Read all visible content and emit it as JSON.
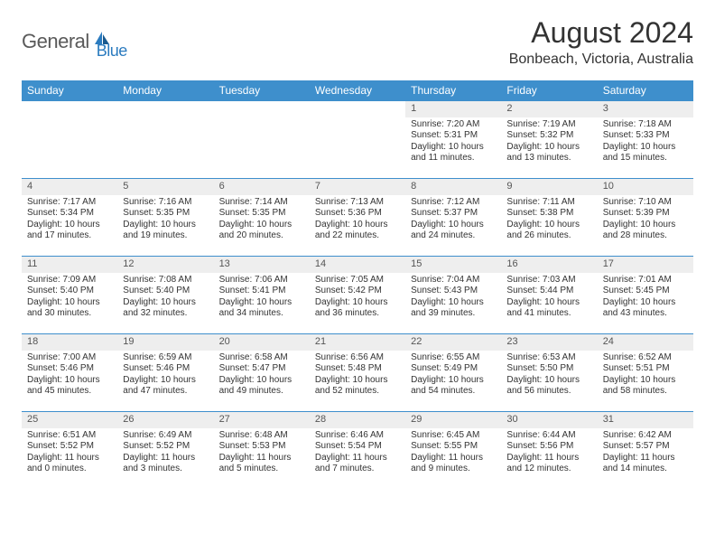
{
  "logo": {
    "text1": "General",
    "text2": "Blue"
  },
  "header": {
    "title": "August 2024",
    "location": "Bonbeach, Victoria, Australia"
  },
  "colors": {
    "header_bg": "#3e8fcc",
    "header_text": "#ffffff",
    "daynum_bg": "#eeeeee",
    "border": "#3e8fcc",
    "text": "#333333",
    "logo_gray": "#5a5a5a",
    "logo_blue": "#2b7bbf"
  },
  "weekdays": [
    "Sunday",
    "Monday",
    "Tuesday",
    "Wednesday",
    "Thursday",
    "Friday",
    "Saturday"
  ],
  "weeks": [
    [
      {
        "n": "",
        "sr": "",
        "ss": "",
        "dl": ""
      },
      {
        "n": "",
        "sr": "",
        "ss": "",
        "dl": ""
      },
      {
        "n": "",
        "sr": "",
        "ss": "",
        "dl": ""
      },
      {
        "n": "",
        "sr": "",
        "ss": "",
        "dl": ""
      },
      {
        "n": "1",
        "sr": "Sunrise: 7:20 AM",
        "ss": "Sunset: 5:31 PM",
        "dl": "Daylight: 10 hours and 11 minutes."
      },
      {
        "n": "2",
        "sr": "Sunrise: 7:19 AM",
        "ss": "Sunset: 5:32 PM",
        "dl": "Daylight: 10 hours and 13 minutes."
      },
      {
        "n": "3",
        "sr": "Sunrise: 7:18 AM",
        "ss": "Sunset: 5:33 PM",
        "dl": "Daylight: 10 hours and 15 minutes."
      }
    ],
    [
      {
        "n": "4",
        "sr": "Sunrise: 7:17 AM",
        "ss": "Sunset: 5:34 PM",
        "dl": "Daylight: 10 hours and 17 minutes."
      },
      {
        "n": "5",
        "sr": "Sunrise: 7:16 AM",
        "ss": "Sunset: 5:35 PM",
        "dl": "Daylight: 10 hours and 19 minutes."
      },
      {
        "n": "6",
        "sr": "Sunrise: 7:14 AM",
        "ss": "Sunset: 5:35 PM",
        "dl": "Daylight: 10 hours and 20 minutes."
      },
      {
        "n": "7",
        "sr": "Sunrise: 7:13 AM",
        "ss": "Sunset: 5:36 PM",
        "dl": "Daylight: 10 hours and 22 minutes."
      },
      {
        "n": "8",
        "sr": "Sunrise: 7:12 AM",
        "ss": "Sunset: 5:37 PM",
        "dl": "Daylight: 10 hours and 24 minutes."
      },
      {
        "n": "9",
        "sr": "Sunrise: 7:11 AM",
        "ss": "Sunset: 5:38 PM",
        "dl": "Daylight: 10 hours and 26 minutes."
      },
      {
        "n": "10",
        "sr": "Sunrise: 7:10 AM",
        "ss": "Sunset: 5:39 PM",
        "dl": "Daylight: 10 hours and 28 minutes."
      }
    ],
    [
      {
        "n": "11",
        "sr": "Sunrise: 7:09 AM",
        "ss": "Sunset: 5:40 PM",
        "dl": "Daylight: 10 hours and 30 minutes."
      },
      {
        "n": "12",
        "sr": "Sunrise: 7:08 AM",
        "ss": "Sunset: 5:40 PM",
        "dl": "Daylight: 10 hours and 32 minutes."
      },
      {
        "n": "13",
        "sr": "Sunrise: 7:06 AM",
        "ss": "Sunset: 5:41 PM",
        "dl": "Daylight: 10 hours and 34 minutes."
      },
      {
        "n": "14",
        "sr": "Sunrise: 7:05 AM",
        "ss": "Sunset: 5:42 PM",
        "dl": "Daylight: 10 hours and 36 minutes."
      },
      {
        "n": "15",
        "sr": "Sunrise: 7:04 AM",
        "ss": "Sunset: 5:43 PM",
        "dl": "Daylight: 10 hours and 39 minutes."
      },
      {
        "n": "16",
        "sr": "Sunrise: 7:03 AM",
        "ss": "Sunset: 5:44 PM",
        "dl": "Daylight: 10 hours and 41 minutes."
      },
      {
        "n": "17",
        "sr": "Sunrise: 7:01 AM",
        "ss": "Sunset: 5:45 PM",
        "dl": "Daylight: 10 hours and 43 minutes."
      }
    ],
    [
      {
        "n": "18",
        "sr": "Sunrise: 7:00 AM",
        "ss": "Sunset: 5:46 PM",
        "dl": "Daylight: 10 hours and 45 minutes."
      },
      {
        "n": "19",
        "sr": "Sunrise: 6:59 AM",
        "ss": "Sunset: 5:46 PM",
        "dl": "Daylight: 10 hours and 47 minutes."
      },
      {
        "n": "20",
        "sr": "Sunrise: 6:58 AM",
        "ss": "Sunset: 5:47 PM",
        "dl": "Daylight: 10 hours and 49 minutes."
      },
      {
        "n": "21",
        "sr": "Sunrise: 6:56 AM",
        "ss": "Sunset: 5:48 PM",
        "dl": "Daylight: 10 hours and 52 minutes."
      },
      {
        "n": "22",
        "sr": "Sunrise: 6:55 AM",
        "ss": "Sunset: 5:49 PM",
        "dl": "Daylight: 10 hours and 54 minutes."
      },
      {
        "n": "23",
        "sr": "Sunrise: 6:53 AM",
        "ss": "Sunset: 5:50 PM",
        "dl": "Daylight: 10 hours and 56 minutes."
      },
      {
        "n": "24",
        "sr": "Sunrise: 6:52 AM",
        "ss": "Sunset: 5:51 PM",
        "dl": "Daylight: 10 hours and 58 minutes."
      }
    ],
    [
      {
        "n": "25",
        "sr": "Sunrise: 6:51 AM",
        "ss": "Sunset: 5:52 PM",
        "dl": "Daylight: 11 hours and 0 minutes."
      },
      {
        "n": "26",
        "sr": "Sunrise: 6:49 AM",
        "ss": "Sunset: 5:52 PM",
        "dl": "Daylight: 11 hours and 3 minutes."
      },
      {
        "n": "27",
        "sr": "Sunrise: 6:48 AM",
        "ss": "Sunset: 5:53 PM",
        "dl": "Daylight: 11 hours and 5 minutes."
      },
      {
        "n": "28",
        "sr": "Sunrise: 6:46 AM",
        "ss": "Sunset: 5:54 PM",
        "dl": "Daylight: 11 hours and 7 minutes."
      },
      {
        "n": "29",
        "sr": "Sunrise: 6:45 AM",
        "ss": "Sunset: 5:55 PM",
        "dl": "Daylight: 11 hours and 9 minutes."
      },
      {
        "n": "30",
        "sr": "Sunrise: 6:44 AM",
        "ss": "Sunset: 5:56 PM",
        "dl": "Daylight: 11 hours and 12 minutes."
      },
      {
        "n": "31",
        "sr": "Sunrise: 6:42 AM",
        "ss": "Sunset: 5:57 PM",
        "dl": "Daylight: 11 hours and 14 minutes."
      }
    ]
  ]
}
